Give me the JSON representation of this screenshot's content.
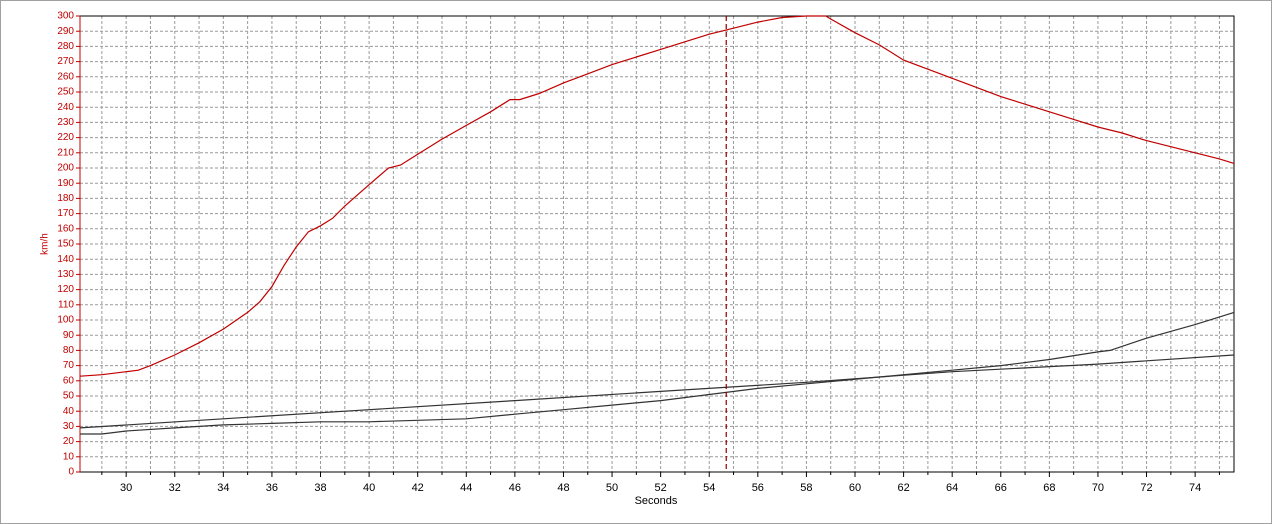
{
  "chart_data": {
    "type": "line",
    "xlabel": "Seconds",
    "ylabel": "km/h",
    "xlim": [
      28.1,
      75.6
    ],
    "ylim": [
      0,
      300
    ],
    "xticks": [
      30,
      32,
      34,
      36,
      38,
      40,
      42,
      44,
      46,
      48,
      50,
      52,
      54,
      56,
      58,
      60,
      62,
      64,
      66,
      68,
      70,
      72,
      74
    ],
    "x_minor_ticks": [
      29,
      31,
      33,
      35,
      37,
      39,
      41,
      43,
      45,
      47,
      49,
      51,
      53,
      55,
      57,
      59,
      61,
      63,
      65,
      67,
      69,
      71,
      73,
      75
    ],
    "yticks": [
      0,
      10,
      20,
      30,
      40,
      50,
      60,
      70,
      80,
      90,
      100,
      110,
      120,
      130,
      140,
      150,
      160,
      170,
      180,
      190,
      200,
      210,
      220,
      230,
      240,
      250,
      260,
      270,
      280,
      290,
      300
    ],
    "grid": true,
    "axis_color": "#c00000",
    "cursor_x": 54.7,
    "cursor_color": "#8b0000",
    "series": [
      {
        "color": "#c00000",
        "x": [
          28.1,
          29,
          30,
          30.5,
          31,
          32,
          33,
          34,
          35,
          35.5,
          36,
          36.5,
          37,
          37.5,
          38,
          38.5,
          39,
          40,
          40.8,
          41.3,
          42,
          43,
          44,
          45,
          45.8,
          46.2,
          47,
          48,
          49,
          50,
          51,
          52,
          53,
          54,
          55,
          56,
          57,
          58,
          58.8,
          59,
          60,
          61,
          62,
          63,
          64,
          65,
          66,
          67,
          68,
          69,
          70,
          71,
          72,
          73,
          74,
          75,
          75.6
        ],
        "values": [
          63,
          64,
          66,
          67,
          70,
          77,
          85,
          94,
          105,
          112,
          122,
          136,
          148,
          158,
          162,
          167,
          175,
          189,
          200,
          202,
          209,
          219,
          228,
          237,
          245,
          245,
          249,
          256,
          262,
          268,
          273,
          278,
          283,
          288,
          292,
          296,
          299,
          300,
          300,
          298,
          289,
          281,
          271,
          265,
          259,
          253,
          247,
          242,
          237,
          232,
          227,
          223,
          218,
          214,
          210,
          206,
          203
        ]
      },
      {
        "color": "#333333",
        "x": [
          28.1,
          34,
          40,
          46,
          52,
          58,
          64,
          70,
          75.6
        ],
        "values": [
          29,
          35,
          41,
          47,
          53,
          59,
          66,
          71,
          77
        ]
      },
      {
        "color": "#333333",
        "x": [
          28.1,
          29,
          30,
          32,
          34,
          36,
          38,
          40,
          42,
          44,
          46,
          48,
          50,
          52,
          54,
          56,
          58,
          60,
          62,
          64,
          66,
          68,
          70,
          70.5,
          72,
          74,
          75.6
        ],
        "values": [
          25,
          25,
          27,
          29,
          31,
          32,
          33,
          33,
          34,
          35,
          38,
          41,
          44,
          47,
          51,
          55,
          58,
          61,
          64,
          67,
          70,
          74,
          79,
          80,
          88,
          97,
          105
        ]
      }
    ]
  }
}
